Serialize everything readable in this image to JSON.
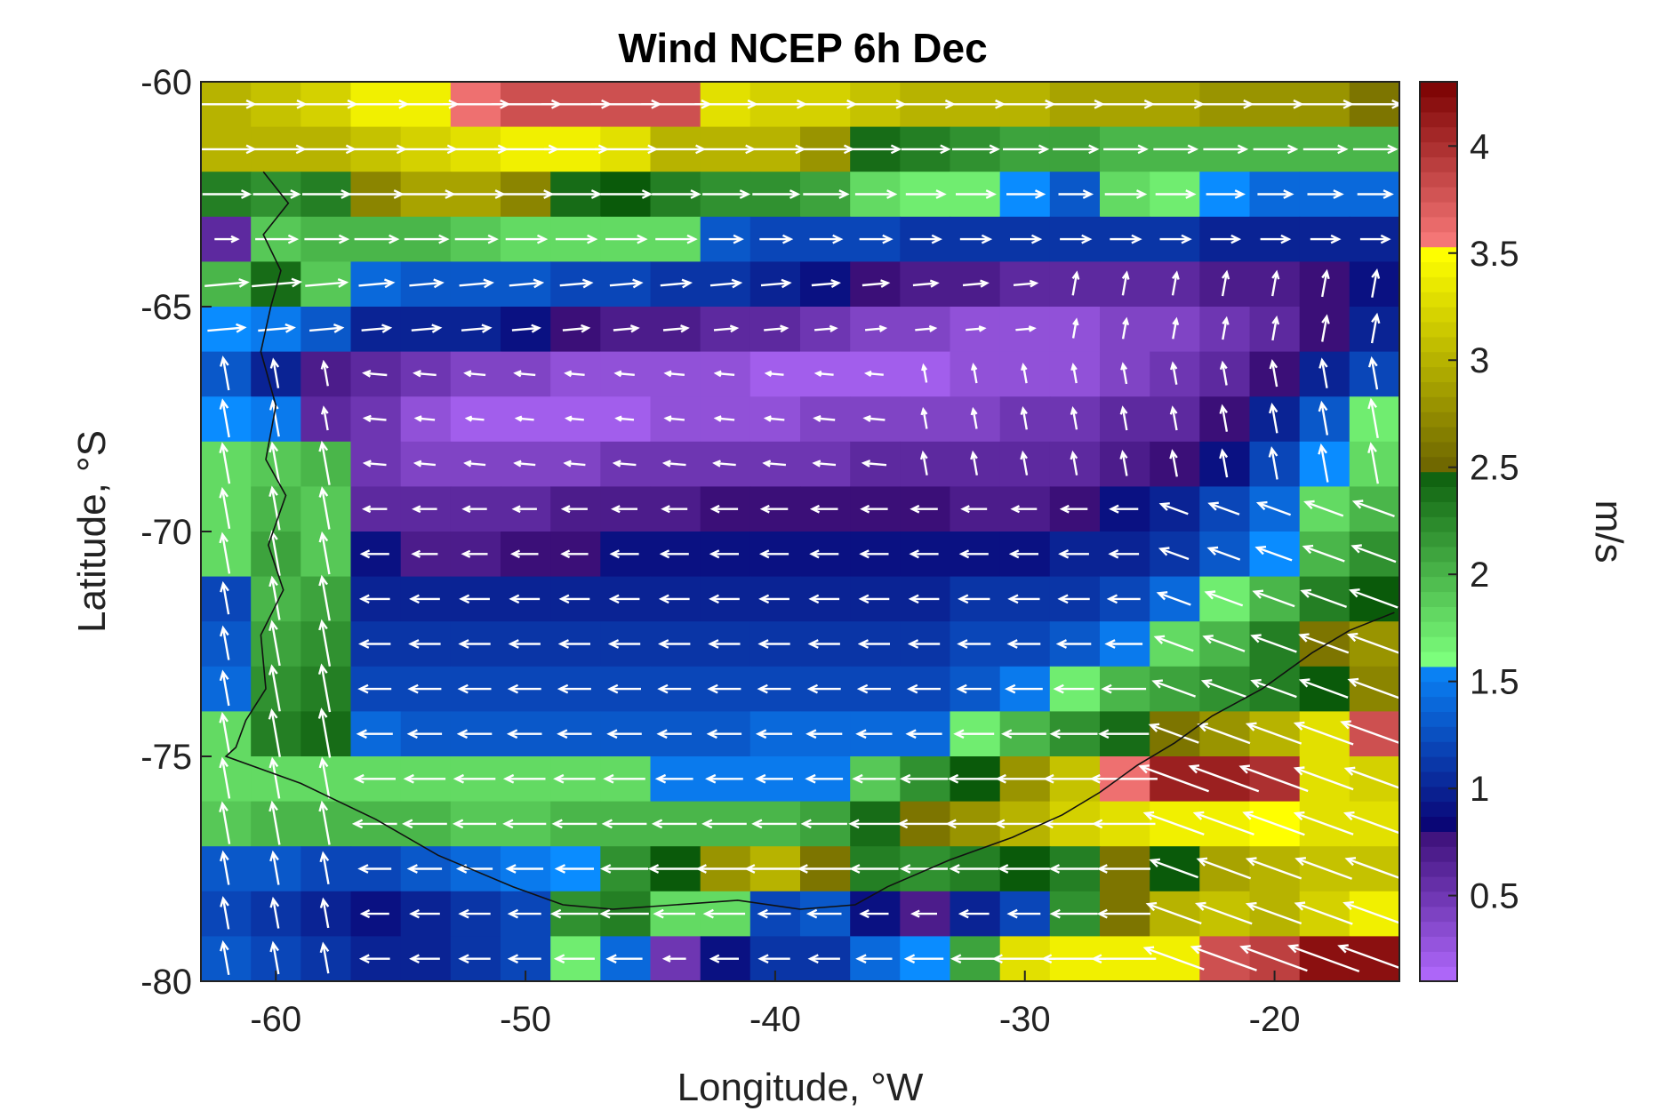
{
  "chart_data": {
    "type": "heatmap",
    "title": "Wind NCEP 6h Dec",
    "xlabel": "Longitude, °W",
    "ylabel": "Latitude, °S",
    "colorbar_label": "m/s",
    "xlim": [
      -63,
      -15
    ],
    "ylim": [
      -80,
      -60
    ],
    "xticks": [
      -60,
      -50,
      -40,
      -30,
      -20
    ],
    "yticks": [
      -60,
      -65,
      -70,
      -75,
      -80
    ],
    "colorbar_range": [
      0.1,
      4.3
    ],
    "colorbar_ticks": [
      0.5,
      1,
      1.5,
      2,
      2.5,
      3,
      3.5,
      4
    ],
    "colormap": [
      {
        "from": 0.1,
        "to": 0.8,
        "light": "#b36bff",
        "dark": "#3b0f78"
      },
      {
        "from": 0.8,
        "to": 1.6,
        "light": "#0a0070",
        "dark": "#0a8cff"
      },
      {
        "from": 1.6,
        "to": 2.5,
        "light": "#7dff7d",
        "dark": "#0a5a0a"
      },
      {
        "from": 2.5,
        "to": 3.5,
        "light": "#6e6600",
        "dark": "#ffff00"
      },
      {
        "from": 3.5,
        "to": 4.3,
        "light": "#ff8080",
        "dark": "#7a0000"
      }
    ],
    "grid": {
      "lon_start": -63,
      "lon_step": 2,
      "lat_rows": [
        -60.5,
        -61.5,
        -62.5,
        -63.5,
        -64.5,
        -65.5,
        -66.5,
        -67.5,
        -68.5,
        -69.5,
        -70.5,
        -71.5,
        -72.5,
        -73.5,
        -74.5,
        -75.5,
        -76.5,
        -77.5,
        -78.5,
        -79.5
      ]
    },
    "wind_speed": [
      [
        3.0,
        3.1,
        3.2,
        3.4,
        3.4,
        3.6,
        3.8,
        3.8,
        3.8,
        3.8,
        3.3,
        3.2,
        3.2,
        3.1,
        3.0,
        3.0,
        3.0,
        2.9,
        2.9,
        2.9,
        2.8,
        2.8,
        2.8,
        2.6
      ],
      [
        3.0,
        3.0,
        3.0,
        3.1,
        3.2,
        3.3,
        3.4,
        3.4,
        3.3,
        3.0,
        3.0,
        3.0,
        2.8,
        2.4,
        2.3,
        2.2,
        2.1,
        2.1,
        2.0,
        2.0,
        2.0,
        2.0,
        2.0,
        2.0
      ],
      [
        2.3,
        2.2,
        2.3,
        2.7,
        2.9,
        2.9,
        2.7,
        2.4,
        2.5,
        2.3,
        2.2,
        2.2,
        2.1,
        1.8,
        1.7,
        1.7,
        1.6,
        1.3,
        1.8,
        1.7,
        1.6,
        1.4,
        1.4,
        1.4
      ],
      [
        0.6,
        1.9,
        2.0,
        2.0,
        2.0,
        1.9,
        1.8,
        1.8,
        1.8,
        1.8,
        1.3,
        1.2,
        1.2,
        1.2,
        1.1,
        1.1,
        1.1,
        1.1,
        1.1,
        1.1,
        1.0,
        1.0,
        1.0,
        1.0
      ],
      [
        2.0,
        2.4,
        1.9,
        1.4,
        1.3,
        1.3,
        1.3,
        1.2,
        1.2,
        1.1,
        1.1,
        1.0,
        0.9,
        0.8,
        0.7,
        0.7,
        0.6,
        0.6,
        0.6,
        0.6,
        0.7,
        0.7,
        0.8,
        0.9
      ],
      [
        1.6,
        1.5,
        1.3,
        1.0,
        1.0,
        1.0,
        0.9,
        0.8,
        0.7,
        0.7,
        0.6,
        0.6,
        0.5,
        0.4,
        0.4,
        0.3,
        0.3,
        0.3,
        0.4,
        0.4,
        0.5,
        0.6,
        0.8,
        1.0
      ],
      [
        1.3,
        1.0,
        0.7,
        0.6,
        0.5,
        0.4,
        0.4,
        0.3,
        0.3,
        0.3,
        0.3,
        0.2,
        0.2,
        0.2,
        0.2,
        0.3,
        0.3,
        0.3,
        0.4,
        0.5,
        0.6,
        0.8,
        1.0,
        1.2
      ],
      [
        1.6,
        1.5,
        0.6,
        0.5,
        0.3,
        0.2,
        0.2,
        0.2,
        0.2,
        0.3,
        0.3,
        0.3,
        0.4,
        0.4,
        0.4,
        0.4,
        0.5,
        0.5,
        0.6,
        0.6,
        0.8,
        1.0,
        1.3,
        1.7
      ],
      [
        1.8,
        1.9,
        2.0,
        0.5,
        0.4,
        0.4,
        0.4,
        0.4,
        0.5,
        0.5,
        0.5,
        0.5,
        0.5,
        0.6,
        0.6,
        0.6,
        0.6,
        0.6,
        0.7,
        0.8,
        0.9,
        1.2,
        1.6,
        1.8
      ],
      [
        1.8,
        2.0,
        1.9,
        0.6,
        0.6,
        0.6,
        0.6,
        0.7,
        0.7,
        0.7,
        0.8,
        0.8,
        0.8,
        0.8,
        0.8,
        0.7,
        0.7,
        0.8,
        0.9,
        1.0,
        1.2,
        1.4,
        1.8,
        2.0
      ],
      [
        1.8,
        2.1,
        1.9,
        0.9,
        0.7,
        0.7,
        0.8,
        0.8,
        0.9,
        0.9,
        0.9,
        0.9,
        0.9,
        0.9,
        0.9,
        0.9,
        0.9,
        1.0,
        1.0,
        1.1,
        1.3,
        1.6,
        2.0,
        2.2
      ],
      [
        1.2,
        2.0,
        2.1,
        1.0,
        1.0,
        1.0,
        1.0,
        1.0,
        1.0,
        1.0,
        1.0,
        1.0,
        1.0,
        1.0,
        1.0,
        1.1,
        1.1,
        1.1,
        1.2,
        1.4,
        1.7,
        2.0,
        2.3,
        2.5
      ],
      [
        1.3,
        2.1,
        2.2,
        1.1,
        1.1,
        1.1,
        1.1,
        1.1,
        1.1,
        1.1,
        1.1,
        1.1,
        1.1,
        1.1,
        1.1,
        1.2,
        1.2,
        1.3,
        1.5,
        1.8,
        2.0,
        2.3,
        2.6,
        2.8
      ],
      [
        1.4,
        2.2,
        2.3,
        1.2,
        1.2,
        1.2,
        1.2,
        1.2,
        1.2,
        1.2,
        1.2,
        1.2,
        1.2,
        1.2,
        1.2,
        1.3,
        1.5,
        1.7,
        2.0,
        2.1,
        2.2,
        2.3,
        2.5,
        2.7
      ],
      [
        1.8,
        2.3,
        2.4,
        1.4,
        1.3,
        1.3,
        1.3,
        1.3,
        1.3,
        1.3,
        1.3,
        1.4,
        1.4,
        1.4,
        1.4,
        1.7,
        2.0,
        2.2,
        2.4,
        2.6,
        2.8,
        3.0,
        3.3,
        3.8
      ],
      [
        1.8,
        1.8,
        1.8,
        1.8,
        1.8,
        1.8,
        1.8,
        1.8,
        1.8,
        1.5,
        1.5,
        1.5,
        1.5,
        1.9,
        2.2,
        2.5,
        2.8,
        3.1,
        3.6,
        4.1,
        4.1,
        4.0,
        3.3,
        3.2
      ],
      [
        1.9,
        2.0,
        2.0,
        2.0,
        2.0,
        1.9,
        1.9,
        2.0,
        2.0,
        2.0,
        2.0,
        2.0,
        2.1,
        2.4,
        2.6,
        2.8,
        3.0,
        3.2,
        3.3,
        3.4,
        3.4,
        3.5,
        3.3,
        3.3
      ],
      [
        1.3,
        1.3,
        1.2,
        1.2,
        1.3,
        1.4,
        1.5,
        1.6,
        2.2,
        2.5,
        2.8,
        3.0,
        2.6,
        2.3,
        2.2,
        2.3,
        2.5,
        2.3,
        2.6,
        2.5,
        2.9,
        3.0,
        3.1,
        3.1
      ],
      [
        1.2,
        1.1,
        1.0,
        0.9,
        1.0,
        1.1,
        1.2,
        2.2,
        2.3,
        1.8,
        1.8,
        1.2,
        1.3,
        0.9,
        0.7,
        1.0,
        1.2,
        2.2,
        2.6,
        3.0,
        3.1,
        3.0,
        3.2,
        3.4
      ],
      [
        1.3,
        1.2,
        1.1,
        1.0,
        1.0,
        1.1,
        1.2,
        1.7,
        1.4,
        0.5,
        0.9,
        1.1,
        1.1,
        1.4,
        1.6,
        2.1,
        3.3,
        3.4,
        3.4,
        3.4,
        3.8,
        3.9,
        4.2,
        4.2
      ]
    ],
    "vector_arrows_note": "",
    "coastline_note": ""
  }
}
